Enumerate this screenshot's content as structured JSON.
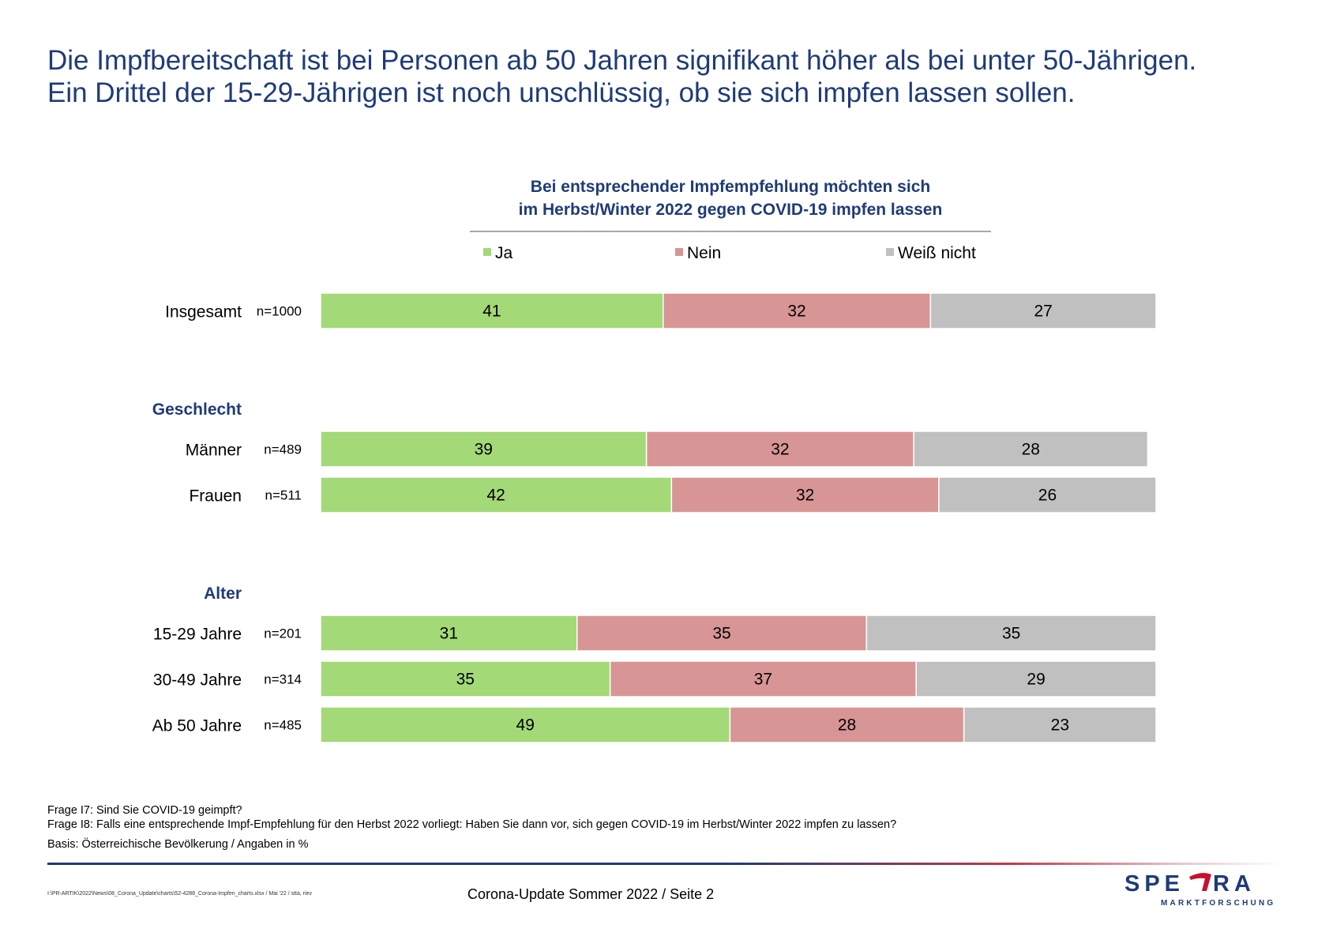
{
  "headline": {
    "line1": "Die Impfbereitschaft ist bei Personen ab 50 Jahren signifikant höher als bei unter 50-Jährigen.",
    "line2": "Ein Drittel der 15-29-Jährigen ist noch unschlüssig, ob sie sich impfen lassen sollen."
  },
  "chart_data": {
    "type": "bar",
    "orientation": "horizontal",
    "stacked": true,
    "title_line1": "Bei entsprechender Impfempfehlung möchten sich",
    "title_line2": "im Herbst/Winter 2022 gegen COVID-19 impfen lassen",
    "legend_position": "top",
    "xlim": [
      0,
      100
    ],
    "grid": false,
    "series": [
      {
        "name": "Ja",
        "color": "#a3d977"
      },
      {
        "name": "Nein",
        "color": "#d89595"
      },
      {
        "name": "Weiß nicht",
        "color": "#c0c0c0"
      }
    ],
    "groups": [
      {
        "header": "",
        "rows": [
          {
            "label": "Insgesamt",
            "n": "n=1000",
            "values": [
              41,
              32,
              27
            ]
          }
        ]
      },
      {
        "header": "Geschlecht",
        "rows": [
          {
            "label": "Männer",
            "n": "n=489",
            "values": [
              39,
              32,
              28
            ]
          },
          {
            "label": "Frauen",
            "n": "n=511",
            "values": [
              42,
              32,
              26
            ]
          }
        ]
      },
      {
        "header": "Alter",
        "rows": [
          {
            "label": "15-29 Jahre",
            "n": "n=201",
            "values": [
              31,
              35,
              35
            ]
          },
          {
            "label": "30-49 Jahre",
            "n": "n=314",
            "values": [
              35,
              37,
              29
            ]
          },
          {
            "label": "Ab 50 Jahre",
            "n": "n=485",
            "values": [
              49,
              28,
              23
            ]
          }
        ]
      }
    ]
  },
  "notes": {
    "frage_i7": "Frage I7: Sind Sie COVID-19 geimpft?",
    "frage_i8": "Frage I8: Falls eine entsprechende Impf-Empfehlung für den Herbst 2022 vorliegt: Haben Sie dann vor, sich gegen COVID-19 im Herbst/Winter 2022 impfen zu lassen?",
    "basis": "Basis: Österreichische Bevölkerung / Angaben in %"
  },
  "footer": {
    "file_path": "I:\\PR-ARTIK\\2022\\News\\08_Corona_Update\\charts\\52-4288_Corona-Impfen_charts.xlsx / Mai '22 / stta, riev",
    "page_label": "Corona-Update Sommer 2022  /  Seite  2"
  },
  "logo": {
    "word": "SPECTRA",
    "tagline": "MARKTFORSCHUNG",
    "color": "#1f3b78",
    "accent": "#c8102e"
  }
}
